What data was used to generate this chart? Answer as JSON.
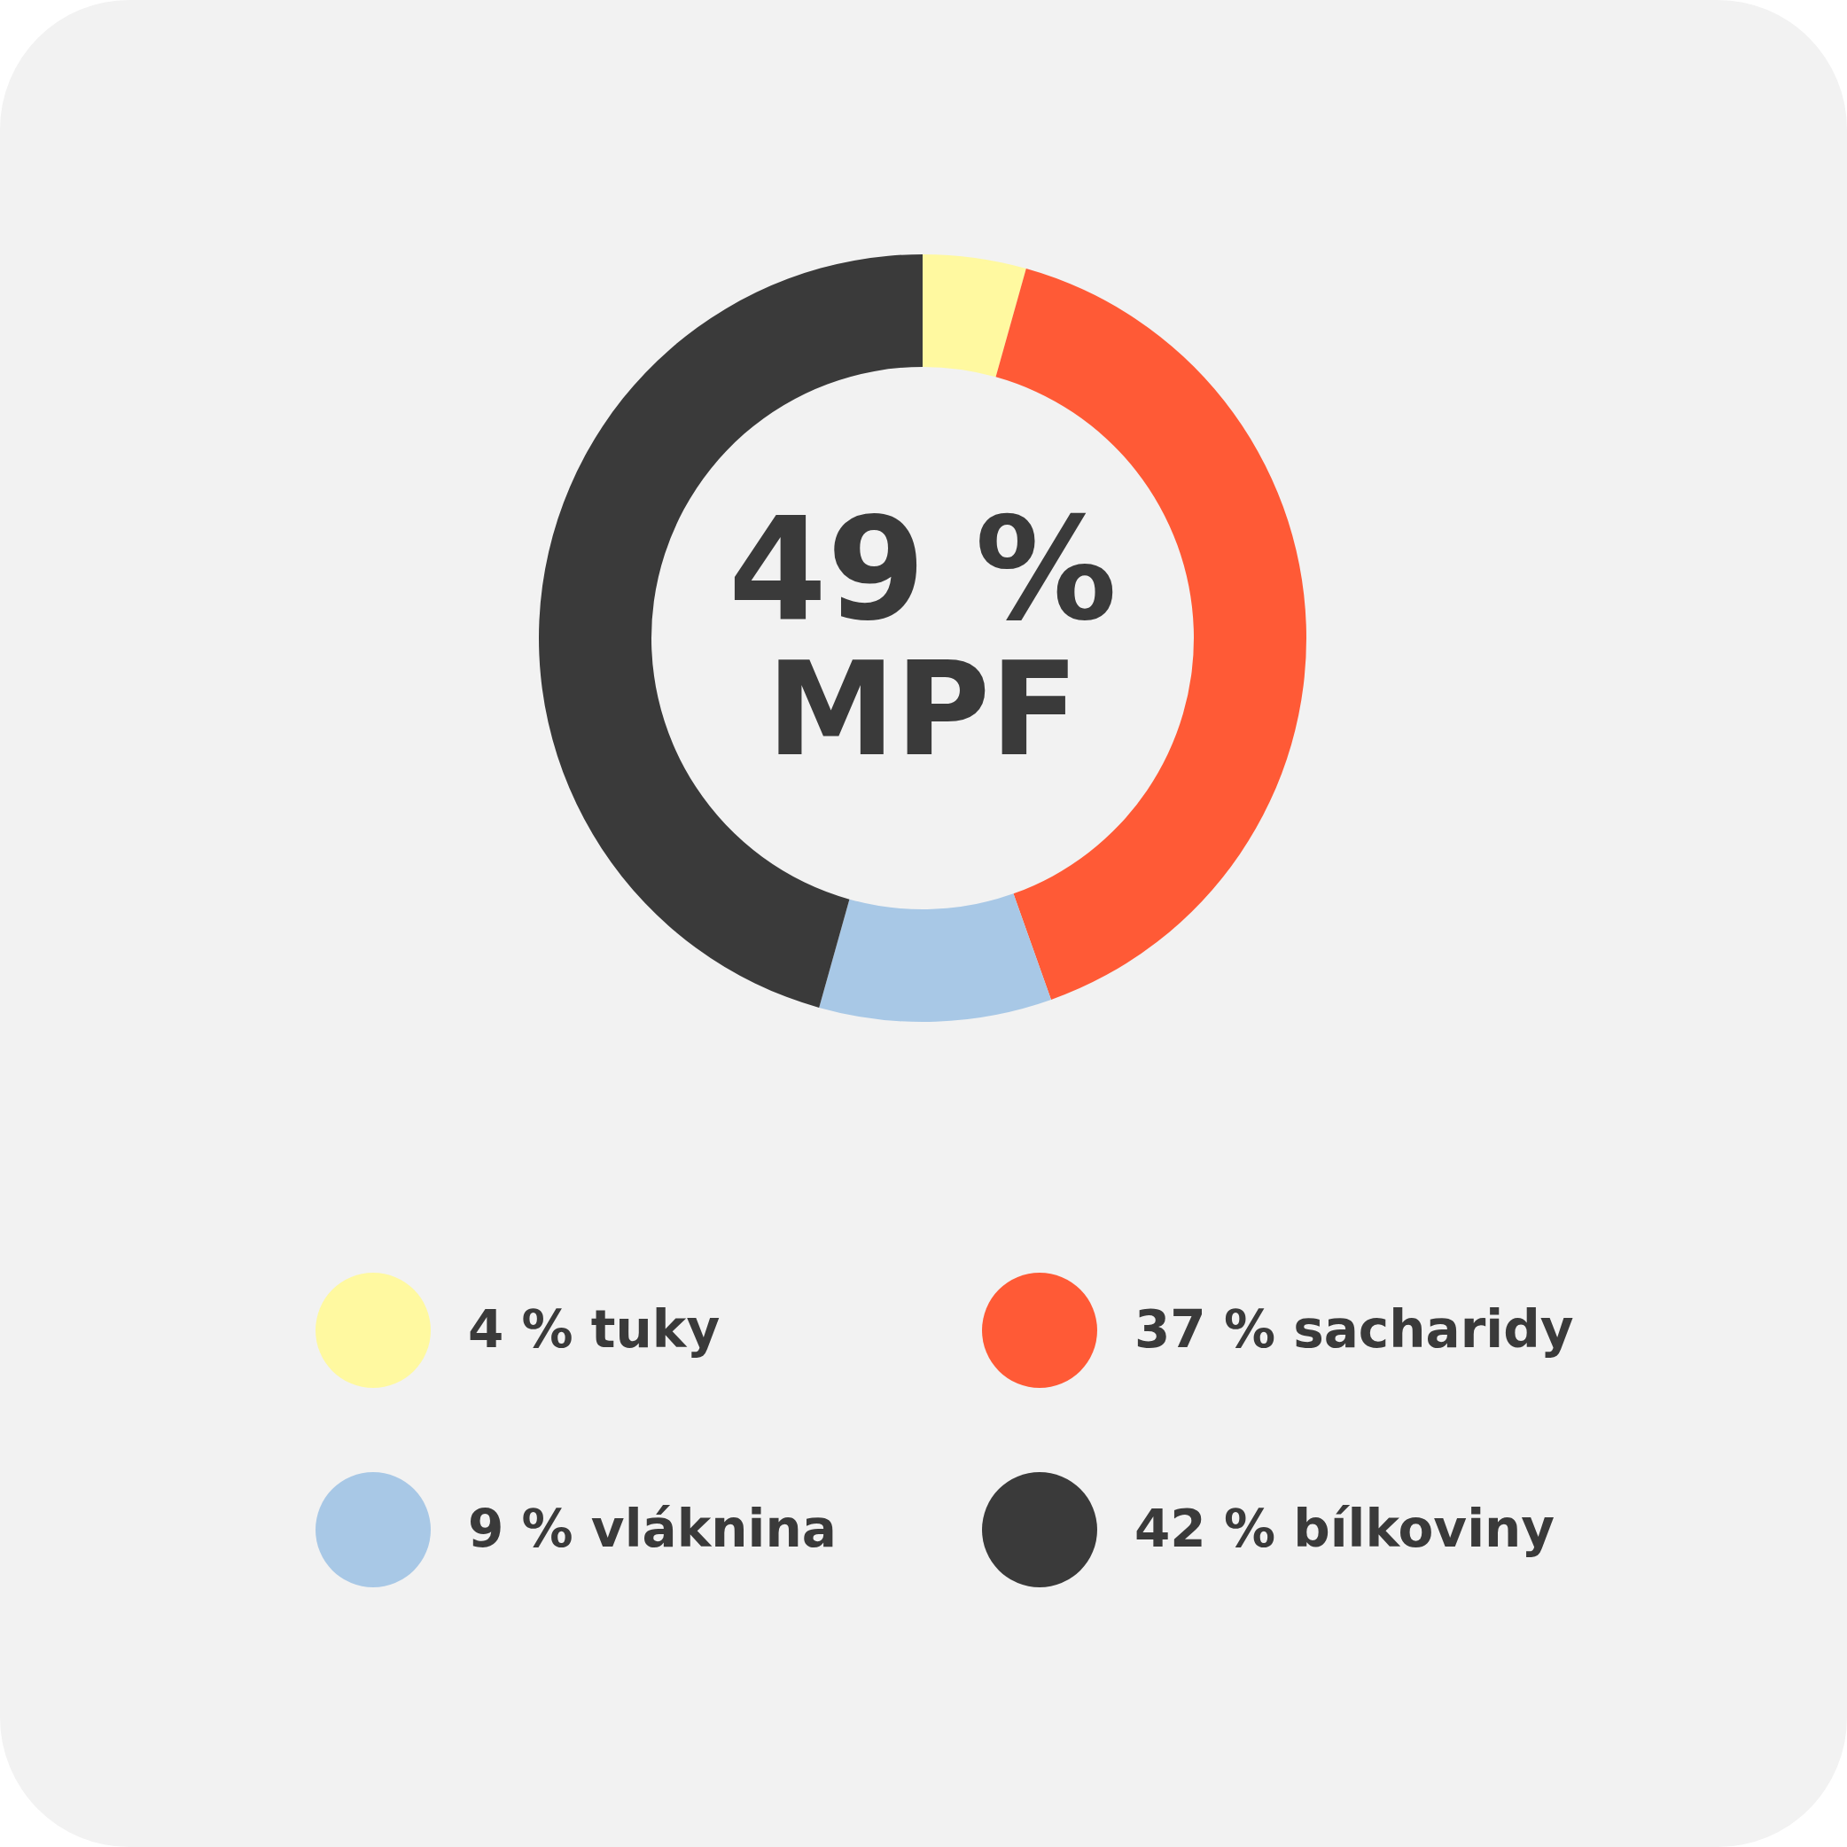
{
  "chart_data": {
    "type": "donut",
    "categories": [
      "4 % tuky",
      "37 % sacharidy",
      "9 % vláknina",
      "42 % bílkoviny"
    ],
    "values": [
      4,
      37,
      9,
      42
    ],
    "colors": [
      "#fff9a0",
      "#ff5a36",
      "#a8c8e6",
      "#3a3a3a"
    ],
    "annotations": [
      "49 %",
      "MPF"
    ],
    "legend": "bottom"
  }
}
